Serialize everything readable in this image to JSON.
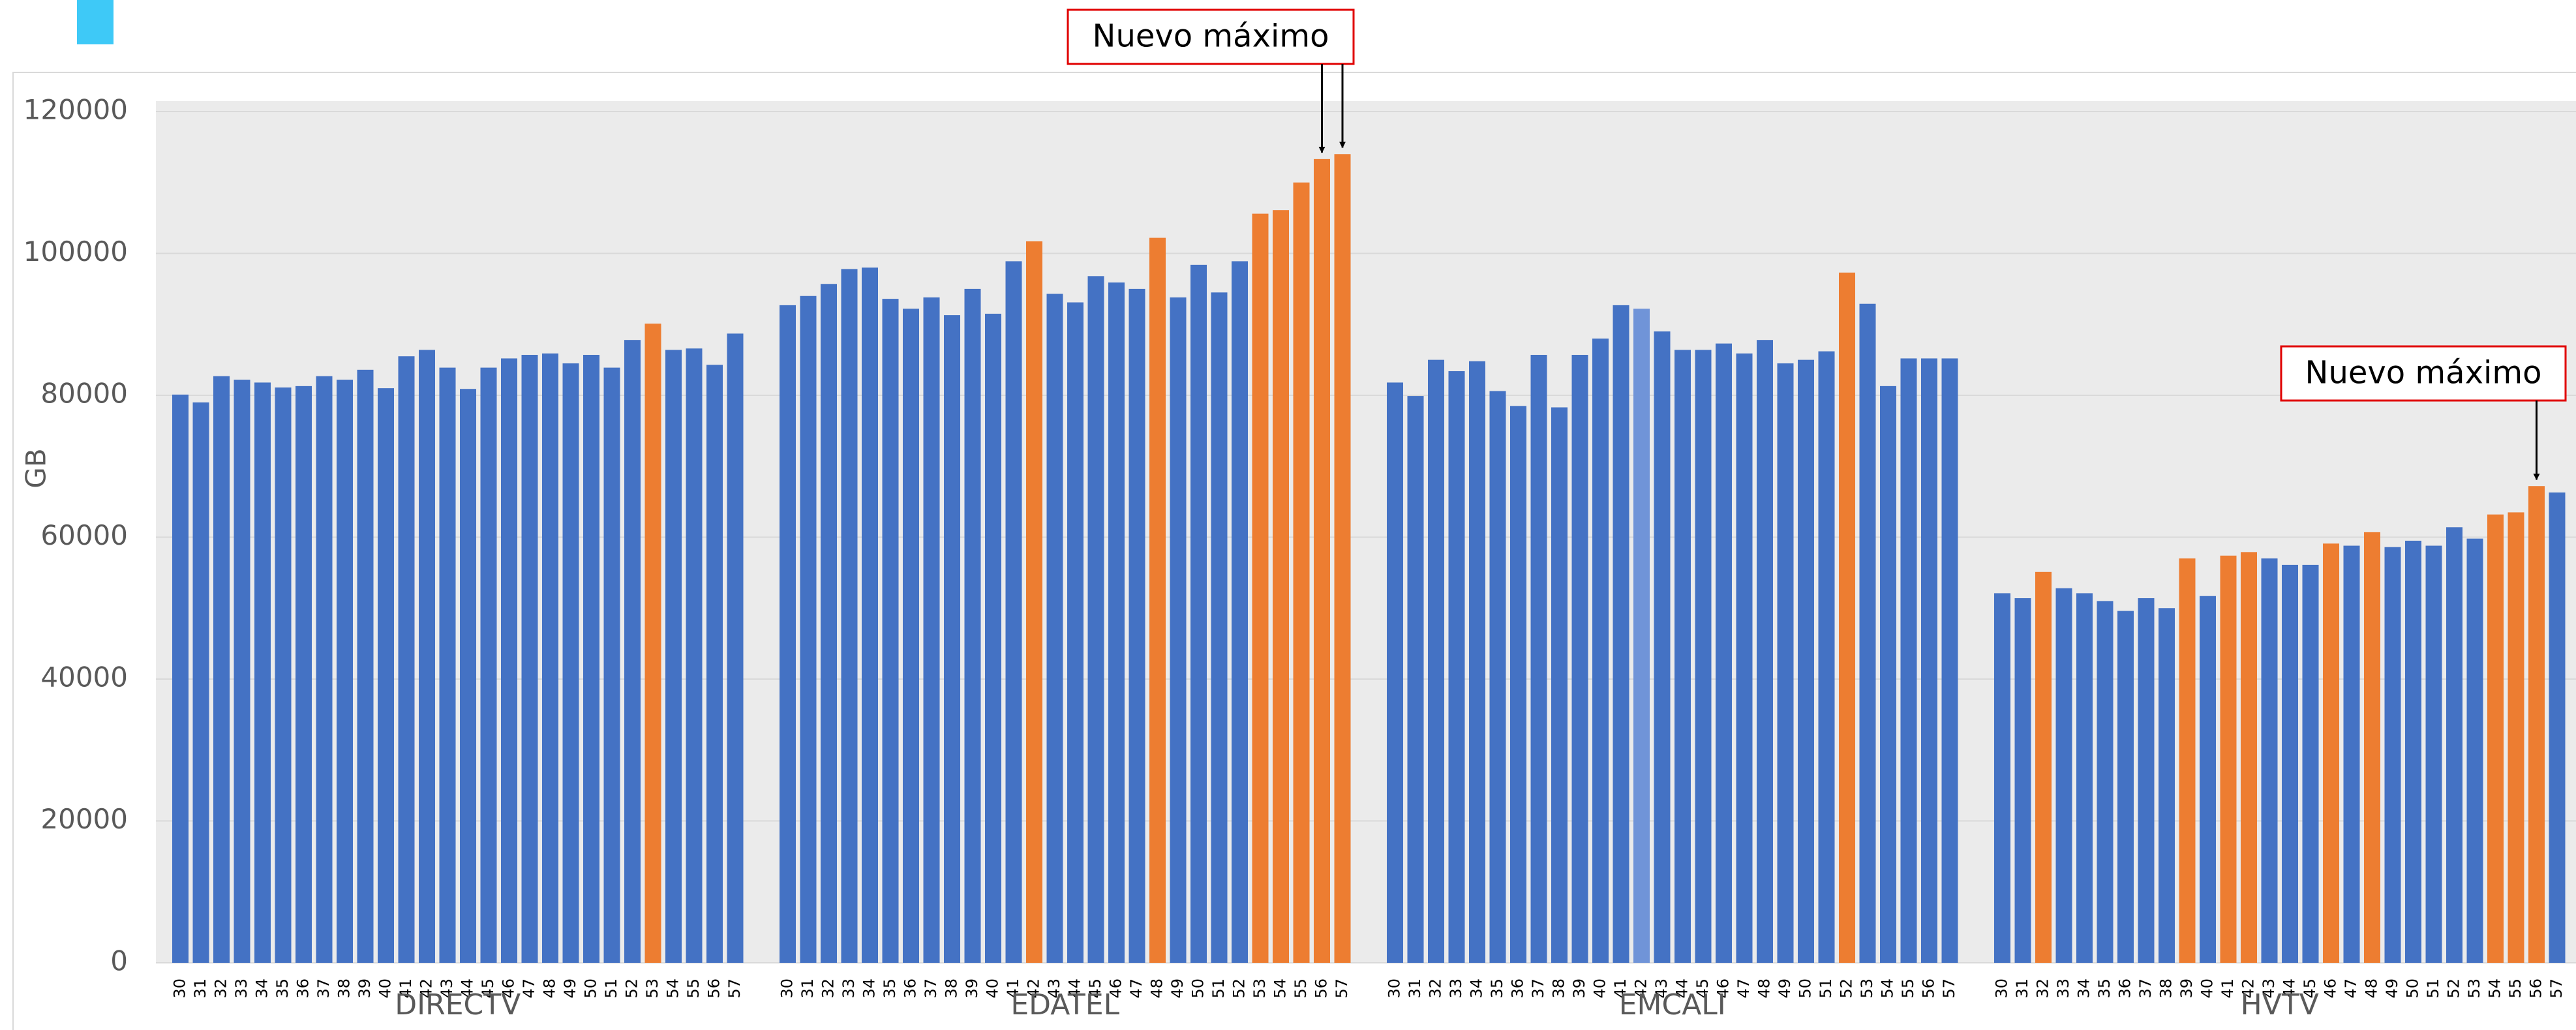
{
  "chart_data": {
    "type": "bar",
    "y_label": "GB",
    "ylim": [
      0,
      120000
    ],
    "yticks": [
      0,
      20000,
      40000,
      60000,
      80000,
      100000,
      120000
    ],
    "grid": true,
    "groups": [
      {
        "name": "DIRECTV",
        "categories": [
          "30",
          "31",
          "32",
          "33",
          "34",
          "35",
          "36",
          "37",
          "38",
          "39",
          "40",
          "41",
          "42",
          "43",
          "44",
          "45",
          "46",
          "47",
          "48",
          "49",
          "50",
          "51",
          "52",
          "53",
          "54",
          "55",
          "56",
          "57"
        ],
        "values": [
          80100,
          79000,
          82700,
          82200,
          81800,
          81100,
          81300,
          82700,
          82200,
          83600,
          81000,
          85500,
          86400,
          83900,
          80900,
          83900,
          85200,
          85700,
          85900,
          84500,
          85700,
          83900,
          87800,
          90100,
          86400,
          86600,
          84300,
          88700
        ],
        "colors": [
          "#4472c4",
          "#4472c4",
          "#4472c4",
          "#4472c4",
          "#4472c4",
          "#4472c4",
          "#4472c4",
          "#4472c4",
          "#4472c4",
          "#4472c4",
          "#4472c4",
          "#4472c4",
          "#4472c4",
          "#4472c4",
          "#4472c4",
          "#4472c4",
          "#4472c4",
          "#4472c4",
          "#4472c4",
          "#4472c4",
          "#4472c4",
          "#4472c4",
          "#4472c4",
          "#ed7d31",
          "#4472c4",
          "#4472c4",
          "#4472c4",
          "#4472c4"
        ]
      },
      {
        "name": "EDATEL",
        "categories": [
          "30",
          "31",
          "32",
          "33",
          "34",
          "35",
          "36",
          "37",
          "38",
          "39",
          "40",
          "41",
          "42",
          "43",
          "44",
          "45",
          "46",
          "47",
          "48",
          "49",
          "50",
          "51",
          "52",
          "53",
          "54",
          "55",
          "56",
          "57"
        ],
        "values": [
          92700,
          94000,
          95700,
          97800,
          98000,
          93600,
          92200,
          93800,
          91300,
          95000,
          91500,
          98900,
          101700,
          94300,
          93100,
          96800,
          95900,
          95000,
          102200,
          93800,
          98400,
          94500,
          98900,
          105600,
          106100,
          110000,
          113300,
          114000
        ],
        "colors": [
          "#4472c4",
          "#4472c4",
          "#4472c4",
          "#4472c4",
          "#4472c4",
          "#4472c4",
          "#4472c4",
          "#4472c4",
          "#4472c4",
          "#4472c4",
          "#4472c4",
          "#4472c4",
          "#ed7d31",
          "#4472c4",
          "#4472c4",
          "#4472c4",
          "#4472c4",
          "#4472c4",
          "#ed7d31",
          "#4472c4",
          "#4472c4",
          "#4472c4",
          "#4472c4",
          "#ed7d31",
          "#ed7d31",
          "#ed7d31",
          "#ed7d31",
          "#ed7d31"
        ]
      },
      {
        "name": "EMCALI",
        "categories": [
          "30",
          "31",
          "32",
          "33",
          "34",
          "35",
          "36",
          "37",
          "38",
          "39",
          "40",
          "41",
          "42",
          "43",
          "44",
          "45",
          "46",
          "47",
          "48",
          "49",
          "50",
          "51",
          "52",
          "53",
          "54",
          "55",
          "56",
          "57"
        ],
        "values": [
          81800,
          79900,
          85000,
          83400,
          84800,
          80600,
          78500,
          85700,
          78300,
          85700,
          88000,
          92700,
          92200,
          89000,
          86400,
          86400,
          87300,
          85900,
          87800,
          84500,
          85000,
          86200,
          97300,
          92900,
          81300,
          85200,
          85200,
          85200
        ],
        "colors": [
          "#4472c4",
          "#4472c4",
          "#4472c4",
          "#4472c4",
          "#4472c4",
          "#4472c4",
          "#4472c4",
          "#4472c4",
          "#4472c4",
          "#4472c4",
          "#4472c4",
          "#4472c4",
          "#7094d8",
          "#4472c4",
          "#4472c4",
          "#4472c4",
          "#4472c4",
          "#4472c4",
          "#4472c4",
          "#4472c4",
          "#4472c4",
          "#4472c4",
          "#ed7d31",
          "#4472c4",
          "#4472c4",
          "#4472c4",
          "#4472c4",
          "#4472c4"
        ]
      },
      {
        "name": "HVTV",
        "categories": [
          "30",
          "31",
          "32",
          "33",
          "34",
          "35",
          "36",
          "37",
          "38",
          "39",
          "40",
          "41",
          "42",
          "43",
          "44",
          "45",
          "46",
          "47",
          "48",
          "49",
          "50",
          "51",
          "52",
          "53",
          "54",
          "55",
          "56",
          "57"
        ],
        "values": [
          52100,
          51400,
          55100,
          52800,
          52100,
          51000,
          49600,
          51400,
          50000,
          57000,
          51700,
          57400,
          57900,
          57000,
          56100,
          56100,
          59100,
          58800,
          60700,
          58600,
          59500,
          58800,
          61400,
          59800,
          63200,
          63500,
          67200,
          66300
        ],
        "colors": [
          "#4472c4",
          "#4472c4",
          "#ed7d31",
          "#4472c4",
          "#4472c4",
          "#4472c4",
          "#4472c4",
          "#4472c4",
          "#4472c4",
          "#ed7d31",
          "#4472c4",
          "#ed7d31",
          "#ed7d31",
          "#4472c4",
          "#4472c4",
          "#4472c4",
          "#ed7d31",
          "#4472c4",
          "#ed7d31",
          "#4472c4",
          "#4472c4",
          "#4472c4",
          "#4472c4",
          "#4472c4",
          "#ed7d31",
          "#ed7d31",
          "#ed7d31",
          "#4472c4"
        ]
      }
    ],
    "annotations": [
      {
        "text": "Nuevo máximo"
      },
      {
        "text": "Nuevo máximo"
      }
    ]
  }
}
